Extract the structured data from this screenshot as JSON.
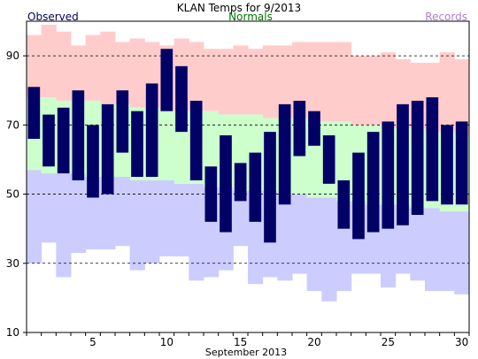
{
  "chart_data": {
    "type": "bar",
    "title": "KLAN Temps for 9/2013",
    "legend": {
      "observed": "Observed",
      "normals": "Normals",
      "records": "Records"
    },
    "xlabel": "September 2013",
    "ylim": [
      10,
      100
    ],
    "yticks": [
      10,
      30,
      50,
      70,
      90
    ],
    "xticks": [
      5,
      10,
      15,
      20,
      25,
      30
    ],
    "grid_dashed_at": [
      30,
      50,
      70,
      90
    ],
    "colors": {
      "observed": "#000066",
      "normals": "#ccffcc",
      "records_high": "#ffcccc",
      "records_low": "#ccccff",
      "legend_observed": "#000066",
      "legend_normals": "#007700",
      "legend_records": "#b07ed0"
    },
    "days": [
      1,
      2,
      3,
      4,
      5,
      6,
      7,
      8,
      9,
      10,
      11,
      12,
      13,
      14,
      15,
      16,
      17,
      18,
      19,
      20,
      21,
      22,
      23,
      24,
      25,
      26,
      27,
      28,
      29,
      30
    ],
    "observed_high": [
      81,
      73,
      75,
      80,
      70,
      76,
      80,
      74,
      82,
      92,
      87,
      77,
      58,
      67,
      59,
      62,
      68,
      76,
      77,
      74,
      67,
      54,
      62,
      68,
      71,
      76,
      77,
      78,
      70,
      71
    ],
    "observed_low": [
      66,
      58,
      56,
      54,
      49,
      50,
      62,
      55,
      55,
      74,
      68,
      54,
      42,
      39,
      48,
      42,
      36,
      47,
      61,
      64,
      53,
      40,
      37,
      39,
      40,
      41,
      44,
      48,
      47,
      47
    ],
    "normal_high": [
      78,
      78,
      77,
      77,
      77,
      76,
      76,
      75,
      75,
      74,
      74,
      74,
      74,
      73,
      73,
      73,
      72,
      72,
      72,
      71,
      71,
      71,
      70,
      70,
      69,
      69,
      69,
      68,
      68,
      67
    ],
    "normal_low": [
      57,
      56,
      56,
      56,
      55,
      55,
      55,
      54,
      54,
      54,
      53,
      53,
      52,
      52,
      51,
      51,
      51,
      50,
      50,
      49,
      49,
      48,
      48,
      47,
      47,
      47,
      46,
      46,
      45,
      45
    ],
    "record_high": [
      96,
      99,
      97,
      93,
      96,
      97,
      94,
      95,
      94,
      93,
      95,
      94,
      92,
      92,
      93,
      92,
      93,
      93,
      94,
      94,
      94,
      94,
      90,
      90,
      91,
      89,
      88,
      88,
      91,
      89
    ],
    "record_low": [
      30,
      36,
      26,
      33,
      34,
      34,
      35,
      28,
      30,
      32,
      32,
      25,
      26,
      28,
      35,
      24,
      26,
      25,
      27,
      22,
      19,
      22,
      27,
      27,
      23,
      27,
      25,
      22,
      22,
      21
    ]
  }
}
